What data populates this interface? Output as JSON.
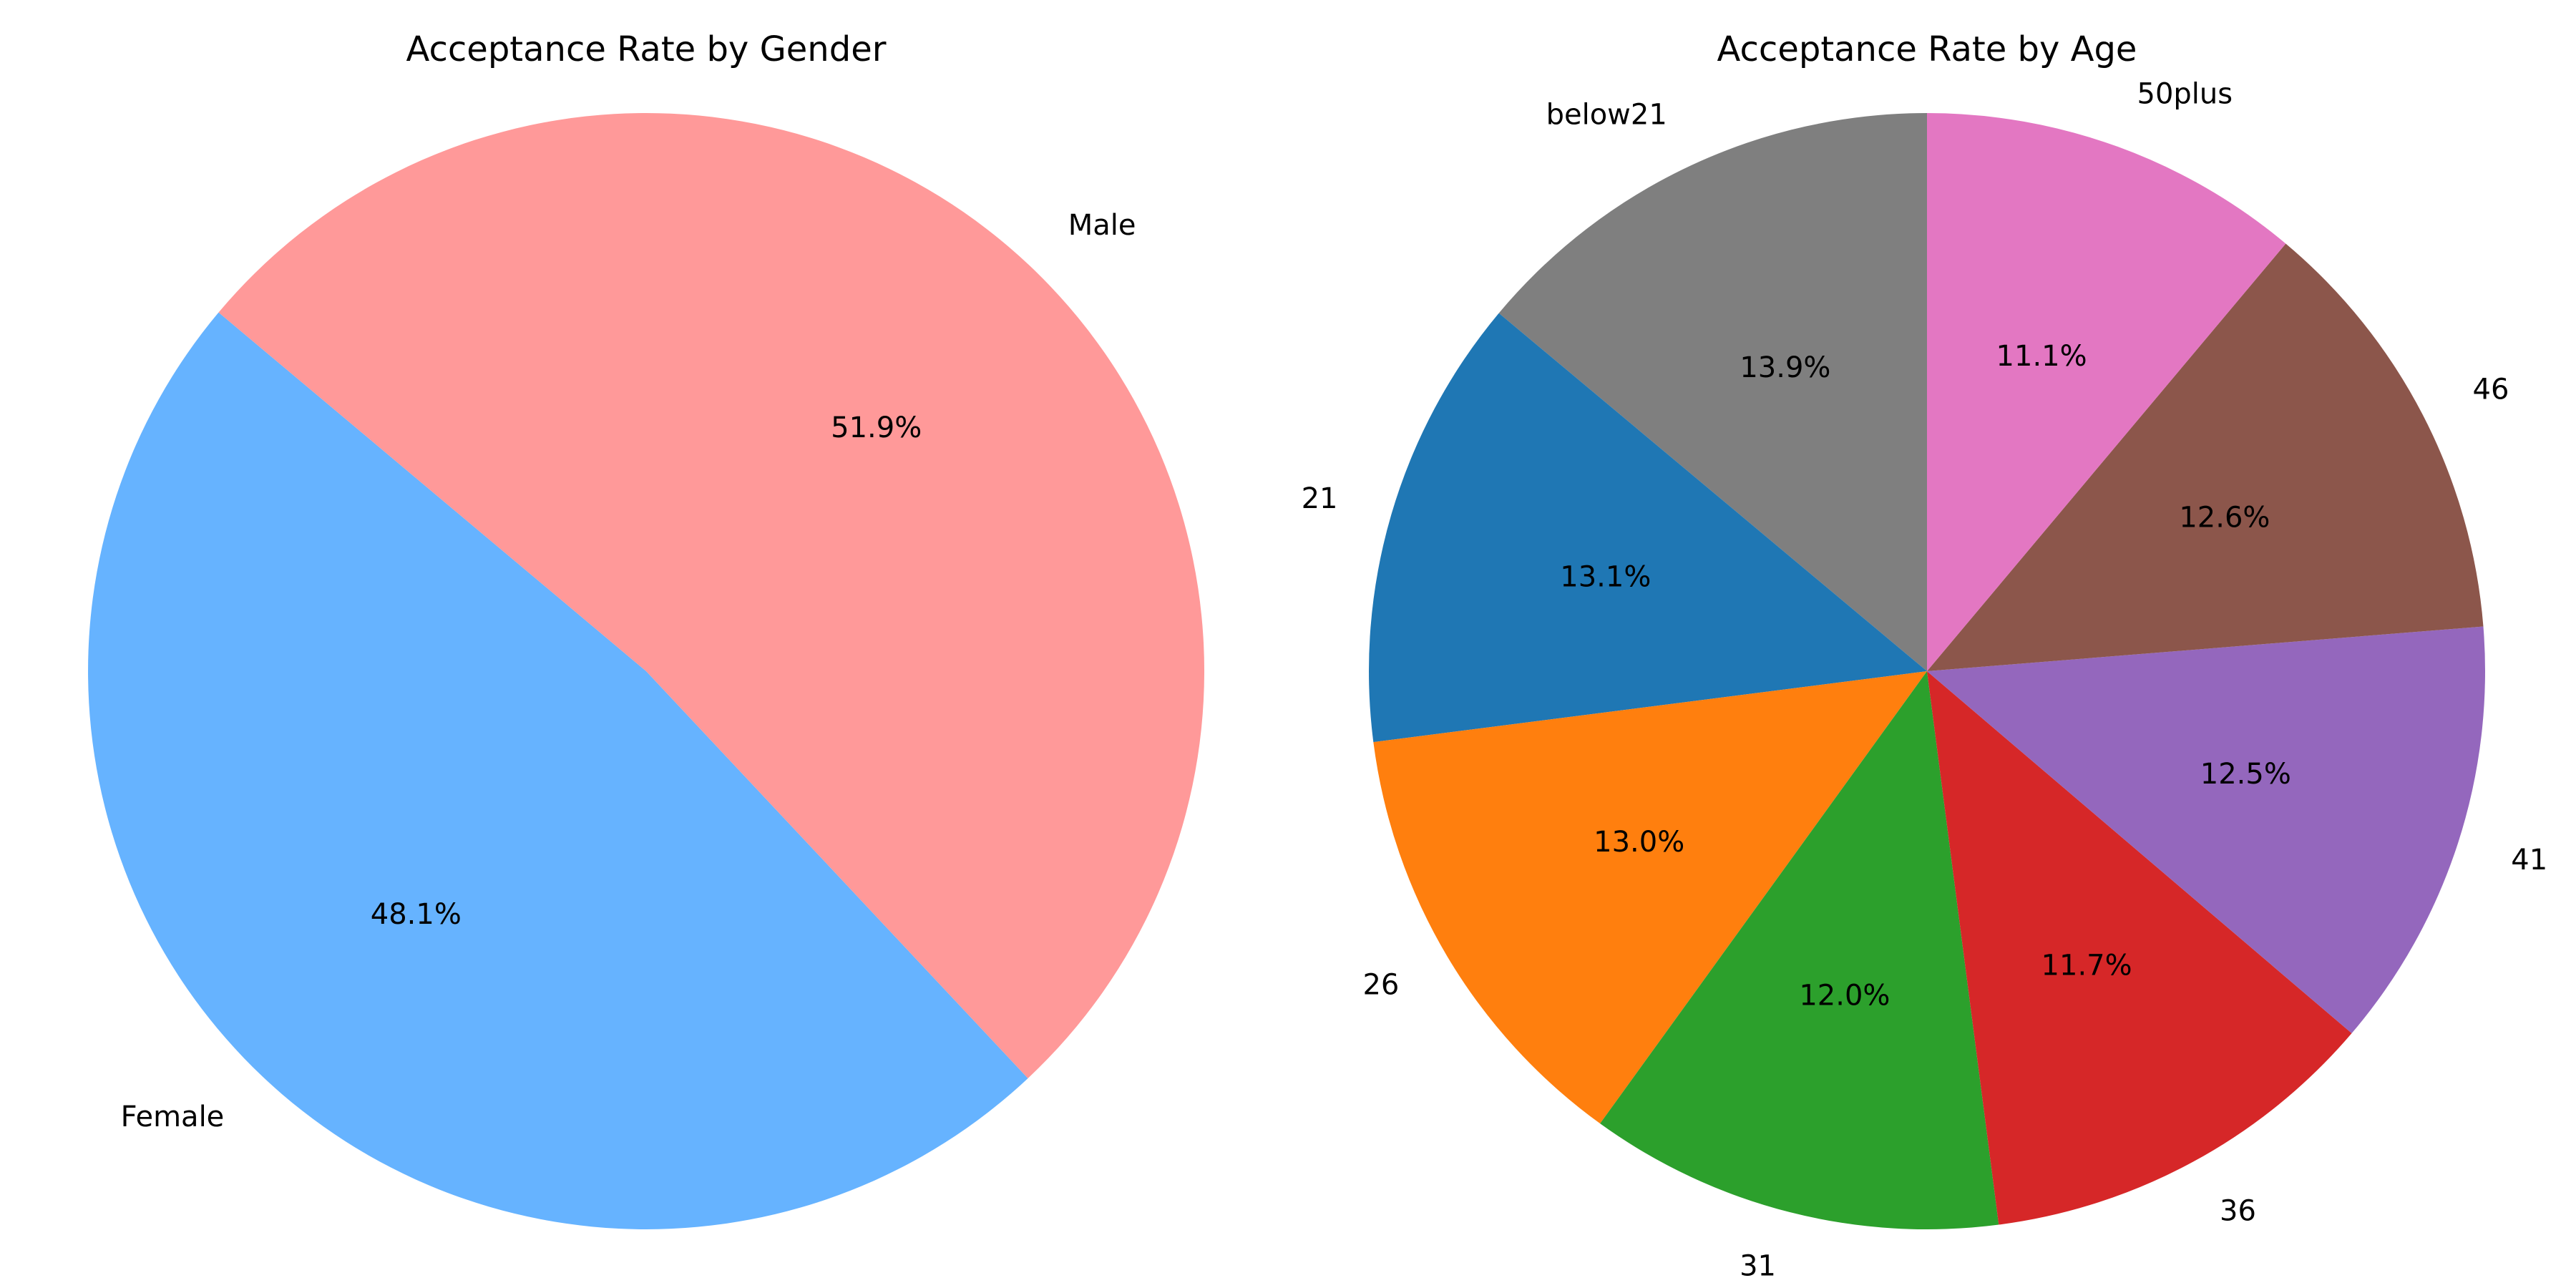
{
  "chart_data": [
    {
      "type": "pie",
      "title": "Acceptance Rate by Gender",
      "categories": [
        "Female",
        "Male"
      ],
      "values": [
        48.1,
        51.9
      ],
      "value_labels": [
        "48.1%",
        "51.9%"
      ],
      "colors": [
        "#66b3ff",
        "#ff9999"
      ],
      "start_angle_deg": 140,
      "direction": "counterclockwise"
    },
    {
      "type": "pie",
      "title": "Acceptance Rate by Age",
      "categories": [
        "below21",
        "21",
        "26",
        "31",
        "36",
        "41",
        "46",
        "50plus"
      ],
      "values": [
        13.9,
        13.1,
        13.0,
        12.0,
        11.7,
        12.5,
        12.6,
        11.1
      ],
      "value_labels": [
        "13.9%",
        "13.1%",
        "13.0%",
        "12.0%",
        "11.7%",
        "12.5%",
        "12.6%",
        "11.1%"
      ],
      "colors": [
        "#7f7f7f",
        "#1f77b4",
        "#ff7f0e",
        "#2ca02c",
        "#d62728",
        "#9467bd",
        "#8c564b",
        "#e377c2"
      ],
      "start_angle_deg": 90,
      "direction": "counterclockwise"
    }
  ]
}
